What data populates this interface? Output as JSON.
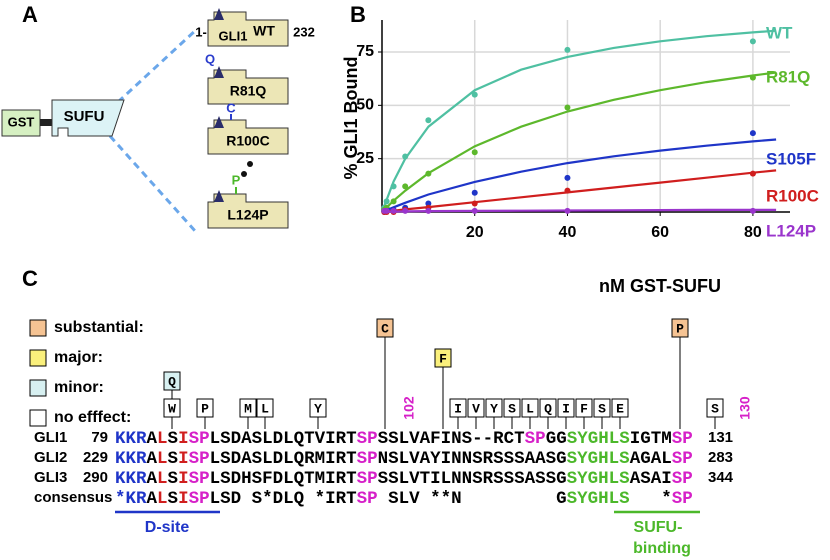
{
  "panel_labels": [
    "A",
    "B",
    "C"
  ],
  "panel_a": {
    "gst": "GST",
    "sufu": "SUFU",
    "start": "1-",
    "domain": "GLI1",
    "end": 232,
    "constructs": [
      {
        "name": "WT",
        "mutation": null
      },
      {
        "name": "R81Q",
        "mutation": "Q"
      },
      {
        "name": "R100C",
        "mutation": "C"
      },
      {
        "name": "L124P",
        "mutation": "P"
      }
    ]
  },
  "chart_data": {
    "type": "scatter",
    "y_label": "% GLI1 Bound",
    "x_label": "nM GST-SUFU",
    "x": [
      0.5,
      1,
      2.5,
      5,
      10,
      20,
      40,
      80
    ],
    "fit_x": [
      0,
      2.5,
      5,
      10,
      20,
      30,
      40,
      50,
      60,
      70,
      80,
      85
    ],
    "xlim": [
      0,
      88
    ],
    "ylim": [
      0,
      90
    ],
    "xticks": [
      20,
      40,
      60,
      80
    ],
    "yticks": [
      25,
      50,
      75
    ],
    "grid": true,
    "series": [
      {
        "name": "WT",
        "color": "#4fc0a2",
        "values": [
          2,
          5,
          12,
          26,
          43,
          55,
          76,
          80
        ],
        "fit_values": [
          0,
          14.3,
          25,
          40,
          57.1,
          66.7,
          72.7,
          76.9,
          80,
          82.4,
          84.2,
          85
        ]
      },
      {
        "name": "R81Q",
        "color": "#5db82c",
        "values": [
          1,
          2,
          5,
          12,
          18,
          28,
          49,
          63
        ],
        "fit_values": [
          0,
          5.3,
          10,
          18.2,
          30.8,
          40,
          47.1,
          52.6,
          57.1,
          60.9,
          64,
          65.4
        ]
      },
      {
        "name": "S105F",
        "color": "#1f35c8",
        "values": [
          0,
          0.5,
          1,
          2,
          4,
          9,
          16,
          37
        ],
        "fit_values": [
          0,
          2.2,
          4.3,
          8.2,
          14.1,
          18.9,
          22.9,
          26.1,
          28.8,
          31.1,
          33.1,
          34
        ]
      },
      {
        "name": "R100C",
        "color": "#d01e1e",
        "values": [
          0,
          0,
          0,
          1,
          2,
          4,
          10,
          18
        ],
        "fit_values": [
          0,
          0.6,
          1.2,
          2.3,
          4.6,
          6.9,
          9.2,
          11.5,
          13.8,
          16.1,
          18.4,
          19.5
        ]
      },
      {
        "name": "L124P",
        "color": "#9a35cc",
        "values": [
          0.5,
          0.5,
          0.5,
          0.5,
          0.5,
          0.5,
          0.5,
          0.5
        ],
        "fit_values": [
          0,
          0.2,
          0.3,
          0.4,
          0.5,
          0.6,
          0.7,
          0.8,
          0.9,
          1,
          1,
          1
        ]
      }
    ]
  },
  "panel_c": {
    "legend": [
      {
        "label": "substantial:",
        "color": "#f5c393"
      },
      {
        "label": "major:",
        "color": "#faf07c"
      },
      {
        "label": "minor:",
        "color": "#d7f0f1"
      },
      {
        "label": "no efffect:",
        "color": "#ffffff"
      }
    ],
    "substantial_markers": [
      "C",
      "P"
    ],
    "major_markers": [
      "F"
    ],
    "minor_markers": [
      "Q"
    ],
    "no_effect_markers": [
      "W",
      "P",
      "M",
      "L",
      "Y",
      "I",
      "V",
      "Y",
      "S",
      "L",
      "Q",
      "I",
      "F",
      "S",
      "E",
      "S"
    ],
    "residue_numbers": [
      102,
      130
    ],
    "sequences": [
      {
        "name": "GLI1",
        "start": 79,
        "end": 131,
        "segments": [
          {
            "text": "KKR",
            "color": "#1f35c8"
          },
          {
            "text": "A",
            "color": "#000000"
          },
          {
            "text": "L",
            "color": "#d01e1e"
          },
          {
            "text": "S",
            "color": "#000000"
          },
          {
            "text": "I",
            "color": "#d01e1e"
          },
          {
            "text": "SP",
            "color": "#d620c8"
          },
          {
            "text": "LSDASLDLQTVIRT",
            "color": "#000000"
          },
          {
            "text": "SP",
            "color": "#d620c8"
          },
          {
            "text": "SSLVAFINS--RCT",
            "color": "#000000"
          },
          {
            "text": "SP",
            "color": "#d620c8"
          },
          {
            "text": "GG",
            "color": "#000000"
          },
          {
            "text": "SYGHLS",
            "color": "#4cb82a"
          },
          {
            "text": "IGTM",
            "color": "#000000"
          },
          {
            "text": "SP",
            "color": "#d620c8"
          }
        ]
      },
      {
        "name": "GLI2",
        "start": 229,
        "end": 283,
        "segments": [
          {
            "text": "KKR",
            "color": "#1f35c8"
          },
          {
            "text": "A",
            "color": "#000000"
          },
          {
            "text": "L",
            "color": "#d01e1e"
          },
          {
            "text": "S",
            "color": "#000000"
          },
          {
            "text": "I",
            "color": "#d01e1e"
          },
          {
            "text": "SP",
            "color": "#d620c8"
          },
          {
            "text": "LSDASLDLQRMIRT",
            "color": "#000000"
          },
          {
            "text": "SP",
            "color": "#d620c8"
          },
          {
            "text": "NSLVAYINNSRSSSAASG",
            "color": "#000000"
          },
          {
            "text": "SYGHLS",
            "color": "#4cb82a"
          },
          {
            "text": "AGAL",
            "color": "#000000"
          },
          {
            "text": "SP",
            "color": "#d620c8"
          }
        ]
      },
      {
        "name": "GLI3",
        "start": 290,
        "end": 344,
        "segments": [
          {
            "text": "KKR",
            "color": "#1f35c8"
          },
          {
            "text": "A",
            "color": "#000000"
          },
          {
            "text": "L",
            "color": "#d01e1e"
          },
          {
            "text": "S",
            "color": "#000000"
          },
          {
            "text": "I",
            "color": "#d01e1e"
          },
          {
            "text": "SP",
            "color": "#d620c8"
          },
          {
            "text": "LSDHSFDLQTMIRT",
            "color": "#000000"
          },
          {
            "text": "SP",
            "color": "#d620c8"
          },
          {
            "text": "SSLVTILNNSRSSSASSG",
            "color": "#000000"
          },
          {
            "text": "SYGHLS",
            "color": "#4cb82a"
          },
          {
            "text": "ASAI",
            "color": "#000000"
          },
          {
            "text": "SP",
            "color": "#d620c8"
          }
        ]
      },
      {
        "name": "consensus",
        "start": null,
        "end": null,
        "segments": [
          {
            "text": "*KR",
            "color": "#1f35c8"
          },
          {
            "text": "A",
            "color": "#000000"
          },
          {
            "text": "L",
            "color": "#d01e1e"
          },
          {
            "text": "S",
            "color": "#000000"
          },
          {
            "text": "I",
            "color": "#d01e1e"
          },
          {
            "text": "SP",
            "color": "#d620c8"
          },
          {
            "text": "LSD S*DLQ *IRT",
            "color": "#000000"
          },
          {
            "text": "SP",
            "color": "#d620c8"
          },
          {
            "text": " SLV **N         G",
            "color": "#000000"
          },
          {
            "text": "SYGHLS",
            "color": "#4cb82a"
          },
          {
            "text": "   *",
            "color": "#000000"
          },
          {
            "text": "SP",
            "color": "#d620c8"
          }
        ]
      }
    ],
    "d_site": "D-site",
    "sufu_binding": [
      "SUFU-",
      "binding"
    ]
  }
}
